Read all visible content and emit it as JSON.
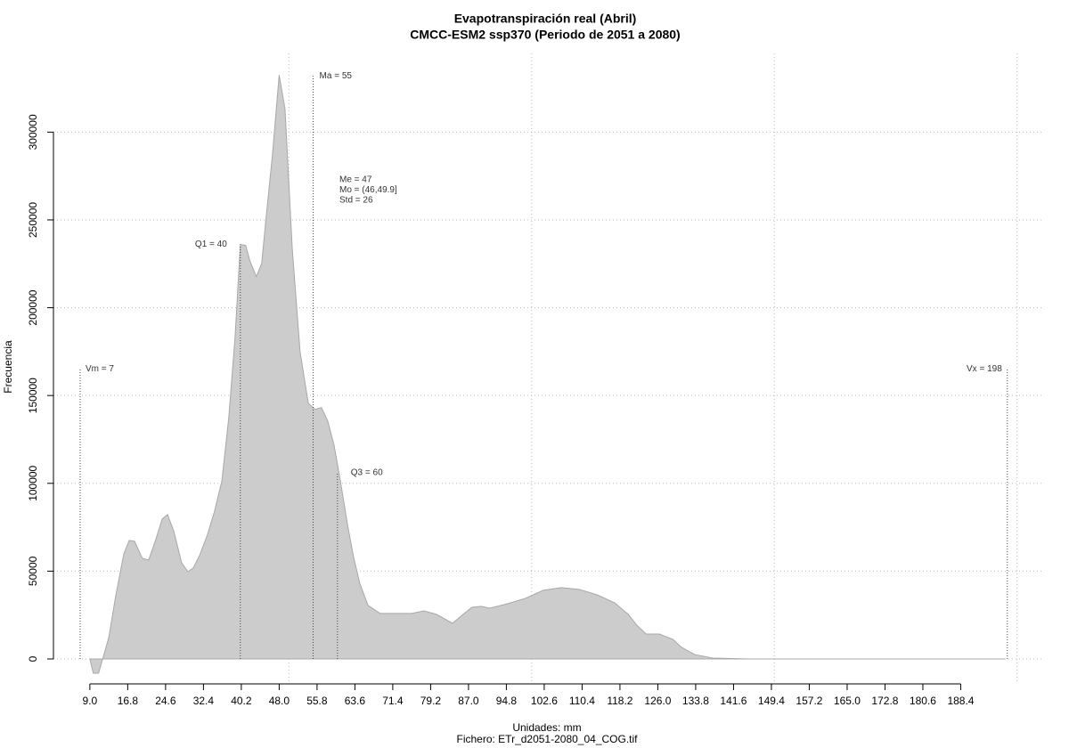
{
  "chart_data": {
    "type": "area",
    "title": "Evapotranspiración real (Abril)",
    "subtitle": "CMCC-ESM2 ssp370 (Periodo de 2051 a 2080)",
    "x_label": "Unidades: mm",
    "y_label": "Frecuencia",
    "footer": "Fichero: ETr_d2051-2080_04_COG.tif",
    "color": "#cccccc",
    "x": [
      9.0,
      9.7,
      10.8,
      12.9,
      14.3,
      16.0,
      17.1,
      18.2,
      19.8,
      21.1,
      22.4,
      23.9,
      25.0,
      26.3,
      27.9,
      29.2,
      30.3,
      31.6,
      33.2,
      34.7,
      36.2,
      37.6,
      38.9,
      40.0,
      41.1,
      42.0,
      43.3,
      44.4,
      45.3,
      46.6,
      48.0,
      49.2,
      50.7,
      52.3,
      54.0,
      55.4,
      56.7,
      58.0,
      59.3,
      60.6,
      62.1,
      63.3,
      64.6,
      66.3,
      68.8,
      72.1,
      75.3,
      77.8,
      80.4,
      83.7,
      85.9,
      87.7,
      89.6,
      91.4,
      95.1,
      98.7,
      102.4,
      106.1,
      109.8,
      113.5,
      117.1,
      119.9,
      121.8,
      123.6,
      126.3,
      129.1,
      130.9,
      133.6,
      137.3,
      144.6,
      197.5
    ],
    "values": [
      0,
      -8100,
      -8100,
      12200,
      35500,
      59900,
      67500,
      67000,
      57400,
      56300,
      66500,
      79700,
      82200,
      72600,
      54800,
      49700,
      51800,
      58900,
      70600,
      84300,
      101500,
      137000,
      182700,
      236000,
      235500,
      226400,
      217700,
      225300,
      251200,
      286700,
      332500,
      313200,
      233500,
      175100,
      145600,
      142100,
      143100,
      135500,
      121800,
      101500,
      76100,
      58400,
      43100,
      30500,
      25900,
      25900,
      25900,
      27400,
      25400,
      20300,
      25400,
      29400,
      30000,
      28900,
      31500,
      34500,
      39100,
      40600,
      39600,
      36500,
      32000,
      25400,
      18800,
      14200,
      14200,
      11200,
      6600,
      2500,
      500,
      0,
      0
    ],
    "xlim": [
      1.5,
      205.2
    ],
    "ylim": [
      -14200,
      344800
    ],
    "xticks": [
      {
        "value": 9,
        "label": "9.0"
      },
      16.8,
      24.6,
      32.4,
      40.2,
      {
        "value": 48,
        "label": "48.0"
      },
      55.8,
      63.6,
      71.4,
      79.2,
      {
        "value": 87,
        "label": "87.0"
      },
      94.8,
      102.6,
      110.4,
      118.2,
      {
        "value": 126,
        "label": "126.0"
      },
      133.8,
      141.6,
      149.4,
      157.2,
      {
        "value": 165,
        "label": "165.0"
      },
      172.8,
      180.6,
      188.4
    ],
    "yticks": [
      0,
      50000,
      100000,
      150000,
      200000,
      250000,
      300000
    ],
    "xgrid": [
      50,
      100,
      150,
      200
    ],
    "grid": true,
    "markers": [
      {
        "label": "Vm = 7",
        "x": 7,
        "y": 165000,
        "side": "right"
      },
      {
        "label": "Q1 = 40",
        "x": 40,
        "y": 236000,
        "side": "left"
      },
      {
        "label": "Ma = 55",
        "x": 55,
        "y": 332000,
        "side": "right"
      },
      {
        "label": "Q3 = 60",
        "x": 60,
        "y": 106000,
        "side": "right"
      },
      {
        "label": "Vx = 198",
        "x": 198,
        "y": 165000,
        "side": "left"
      }
    ],
    "stats": [
      "Me = 47",
      "Mo = (46,49.9]",
      "Std = 26"
    ]
  }
}
